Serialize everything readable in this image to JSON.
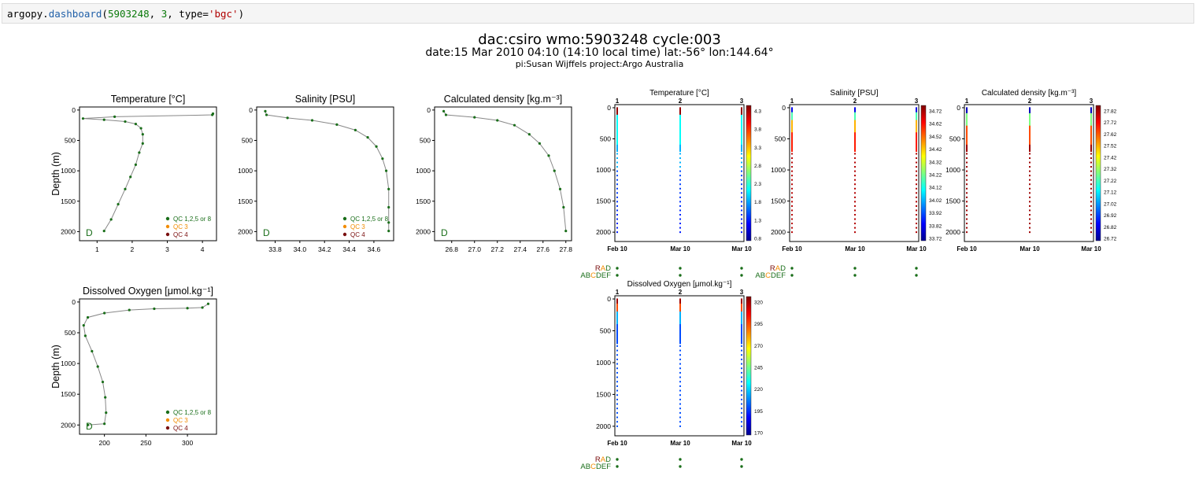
{
  "code": {
    "prompt": "argopy.dashboard(",
    "fn_obj": "argopy",
    "fn_name": "dashboard",
    "wmo": "5903248",
    "cycle": "3",
    "kw": "type=",
    "kwval": "'bgc'",
    "close": ")"
  },
  "header": {
    "line1": "dac:csiro wmo:5903248 cycle:003",
    "line2": "date:15 Mar 2010 04:10 (14:10 local time) lat:-56° lon:144.64°",
    "line3": "pi:Susan Wijffels project:Argo Australia"
  },
  "colors": {
    "qc_good": "#1a6e1a",
    "qc3": "#f28c00",
    "qc4": "#7a0f0f",
    "line": "#888888"
  },
  "legend": {
    "qc_good": "QC 1,2,5 or 8",
    "qc3": "QC 3",
    "qc4": "QC 4"
  },
  "mode_letter": "D",
  "flags": {
    "rad": "RAD",
    "abcdef": "ABCDEF",
    "rad_letters": [
      "R",
      "A",
      "D"
    ],
    "abc_letters": [
      "A",
      "B",
      "C",
      "D",
      "E",
      "F"
    ]
  },
  "chart_data": [
    {
      "id": "temp_profile",
      "type": "line",
      "title": "Temperature [°C]",
      "ylabel": "Depth (m)",
      "xlim": [
        0.5,
        4.4
      ],
      "ylim": [
        2150,
        -50
      ],
      "xticks": [
        "1",
        "2",
        "3",
        "4"
      ],
      "xtick_values": [
        1,
        2,
        3,
        4
      ],
      "yticks": [
        "0",
        "500",
        "1000",
        "1500",
        "2000"
      ],
      "ytick_values": [
        0,
        500,
        1000,
        1500,
        2000
      ],
      "x": [
        4.3,
        4.28,
        1.5,
        0.6,
        1.2,
        1.8,
        2.1,
        2.25,
        2.3,
        2.3,
        2.2,
        2.1,
        1.95,
        1.8,
        1.6,
        1.4,
        1.2
      ],
      "y": [
        60,
        80,
        110,
        140,
        160,
        190,
        230,
        300,
        400,
        550,
        700,
        900,
        1100,
        1300,
        1550,
        1800,
        1990
      ]
    },
    {
      "id": "psal_profile",
      "type": "line",
      "title": "Salinity [PSU]",
      "ylabel": "",
      "xlim": [
        33.65,
        34.76
      ],
      "ylim": [
        2150,
        -50
      ],
      "xticks": [
        "33.8",
        "34.0",
        "34.2",
        "34.4",
        "34.6"
      ],
      "xtick_values": [
        33.8,
        34.0,
        34.2,
        34.4,
        34.6
      ],
      "yticks": [
        "0",
        "500",
        "1000",
        "1500",
        "2000"
      ],
      "ytick_values": [
        0,
        500,
        1000,
        1500,
        2000
      ],
      "x": [
        33.72,
        33.73,
        33.9,
        34.1,
        34.3,
        34.45,
        34.55,
        34.62,
        34.67,
        34.7,
        34.72,
        34.72,
        34.72,
        34.72
      ],
      "y": [
        20,
        80,
        130,
        170,
        240,
        330,
        450,
        600,
        800,
        1000,
        1300,
        1600,
        1850,
        1990
      ]
    },
    {
      "id": "dens_profile",
      "type": "line",
      "title": "Calculated density [kg.m⁻³]",
      "ylabel": "",
      "xlim": [
        26.65,
        27.85
      ],
      "ylim": [
        2150,
        -50
      ],
      "xticks": [
        "26.8",
        "27.0",
        "27.2",
        "27.4",
        "27.6",
        "27.8"
      ],
      "xtick_values": [
        26.8,
        27.0,
        27.2,
        27.4,
        27.6,
        27.8
      ],
      "yticks": [
        "0",
        "500",
        "1000",
        "1500",
        "2000"
      ],
      "ytick_values": [
        0,
        500,
        1000,
        1500,
        2000
      ],
      "x": [
        26.73,
        26.75,
        27.0,
        27.2,
        27.35,
        27.48,
        27.57,
        27.65,
        27.7,
        27.75,
        27.78,
        27.8
      ],
      "y": [
        20,
        80,
        120,
        170,
        250,
        400,
        550,
        750,
        1000,
        1300,
        1600,
        1990
      ]
    },
    {
      "id": "doxy_profile",
      "type": "line",
      "title": "Dissolved Oxygen [μmol.kg⁻¹]",
      "ylabel": "Depth (m)",
      "xlim": [
        170,
        335
      ],
      "ylim": [
        2150,
        -50
      ],
      "xticks": [
        "200",
        "250",
        "300"
      ],
      "xtick_values": [
        200,
        250,
        300
      ],
      "yticks": [
        "0",
        "500",
        "1000",
        "1500",
        "2000"
      ],
      "ytick_values": [
        0,
        500,
        1000,
        1500,
        2000
      ],
      "x": [
        325,
        318,
        300,
        260,
        230,
        200,
        180,
        175,
        177,
        185,
        192,
        198,
        201,
        202,
        200,
        180
      ],
      "y": [
        30,
        90,
        100,
        110,
        130,
        180,
        250,
        380,
        550,
        800,
        1050,
        1300,
        1550,
        1800,
        1980,
        2000
      ]
    },
    {
      "id": "temp_section",
      "type": "scatter",
      "title": "Temperature [°C]",
      "xticks": [
        "Feb 10",
        "Mar 10",
        "Mar 10"
      ],
      "top_ticks": [
        "1",
        "2",
        "3"
      ],
      "yticks": [
        "0",
        "500",
        "1000",
        "1500",
        "2000"
      ],
      "ylim": [
        2150,
        -50
      ],
      "colorbar_ticks": [
        "4.3",
        "3.8",
        "3.3",
        "2.8",
        "2.3",
        "1.8",
        "1.3",
        "0.8"
      ]
    },
    {
      "id": "psal_section",
      "type": "scatter",
      "title": "Salinity [PSU]",
      "xticks": [
        "Feb 10",
        "Mar 10",
        "Mar 10"
      ],
      "top_ticks": [
        "1",
        "2",
        "3"
      ],
      "yticks": [
        "0",
        "500",
        "1000",
        "1500",
        "2000"
      ],
      "ylim": [
        2150,
        -50
      ],
      "colorbar_ticks": [
        "34.72",
        "34.62",
        "34.52",
        "34.42",
        "34.32",
        "34.22",
        "34.12",
        "34.02",
        "33.92",
        "33.82",
        "33.72"
      ]
    },
    {
      "id": "dens_section",
      "type": "scatter",
      "title": "Calculated density [kg.m⁻³]",
      "xticks": [
        "Feb 10",
        "Mar 10",
        "Mar 10"
      ],
      "top_ticks": [
        "1",
        "2",
        "3"
      ],
      "yticks": [
        "0",
        "500",
        "1000",
        "1500",
        "2000"
      ],
      "ylim": [
        2150,
        -50
      ],
      "colorbar_ticks": [
        "27.82",
        "27.72",
        "27.62",
        "27.52",
        "27.42",
        "27.32",
        "27.22",
        "27.12",
        "27.02",
        "26.92",
        "26.82",
        "26.72"
      ]
    },
    {
      "id": "doxy_section",
      "type": "scatter",
      "title": "Dissolved Oxygen [μmol.kg⁻¹]",
      "xticks": [
        "Feb 10",
        "Mar 10",
        "Mar 10"
      ],
      "top_ticks": [
        "1",
        "2",
        "3"
      ],
      "yticks": [
        "0",
        "500",
        "1000",
        "1500",
        "2000"
      ],
      "ylim": [
        2150,
        -50
      ],
      "colorbar_ticks": [
        "320",
        "295",
        "270",
        "245",
        "220",
        "195",
        "170"
      ]
    }
  ]
}
